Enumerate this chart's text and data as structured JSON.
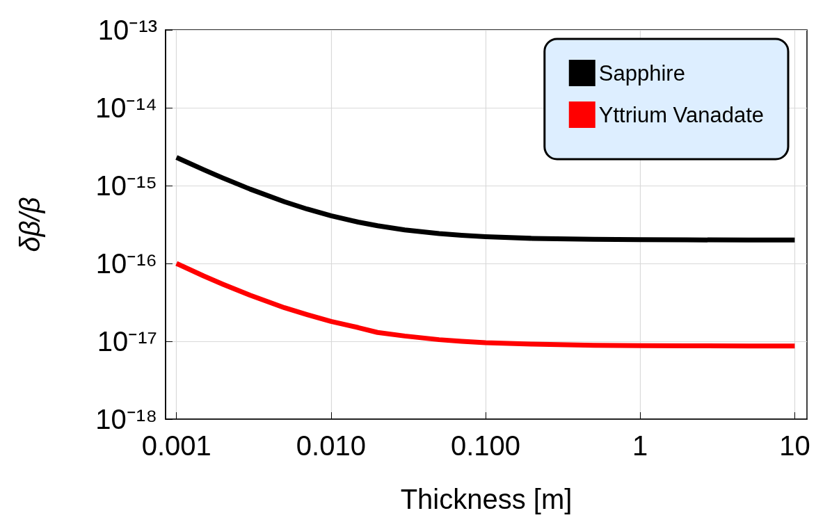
{
  "chart_data": {
    "type": "line",
    "xlabel": "Thickness [m]",
    "ylabel": "δβ/β",
    "log": "xy",
    "grid": true,
    "legend": "top right",
    "line_style": "solid",
    "marker": "none",
    "x": [
      0.001,
      0.0015,
      0.002,
      0.003,
      0.005,
      0.007,
      0.01,
      0.015,
      0.02,
      0.03,
      0.05,
      0.07,
      0.1,
      0.2,
      0.5,
      1,
      2,
      5,
      10
    ],
    "series": [
      {
        "name": "Sapphire",
        "color": "#000000",
        "values": [
          2.3e-15,
          1.6e-15,
          1.25e-15,
          9e-16,
          6.2e-16,
          5e-16,
          4.1e-16,
          3.4e-16,
          3.05e-16,
          2.7e-16,
          2.42e-16,
          2.3e-16,
          2.21e-16,
          2.1e-16,
          2.04e-16,
          2.02e-16,
          2.01e-16,
          2e-16,
          2e-16
        ]
      },
      {
        "name": "Yttrium Vanadate",
        "color": "#ff0000",
        "values": [
          1e-16,
          6.9e-17,
          5.4e-17,
          3.9e-17,
          2.7e-17,
          2.2e-17,
          1.8e-17,
          1.5e-17,
          1.3e-17,
          1.17e-17,
          1.05e-17,
          1e-17,
          9.6e-18,
          9.2e-18,
          8.9e-18,
          8.8e-18,
          8.75e-18,
          8.7e-18,
          8.7e-18
        ]
      }
    ],
    "xlim": [
      0.00085,
      12
    ],
    "xticks": [
      {
        "value": 0.001,
        "label": "0.001"
      },
      {
        "value": 0.01,
        "label": "0.010"
      },
      {
        "value": 0.1,
        "label": "0.100"
      },
      {
        "value": 1,
        "label": "1"
      },
      {
        "value": 10,
        "label": "10"
      }
    ],
    "ylim": [
      1e-18,
      1e-13
    ],
    "yticks": [
      {
        "value": 1e-18,
        "label": "10⁻¹⁸"
      },
      {
        "value": 1e-17,
        "label": "10⁻¹⁷"
      },
      {
        "value": 1e-16,
        "label": "10⁻¹⁶"
      },
      {
        "value": 1e-15,
        "label": "10⁻¹⁵"
      },
      {
        "value": 1e-14,
        "label": "10⁻¹⁴"
      },
      {
        "value": 1e-13,
        "label": "10⁻¹³"
      }
    ]
  }
}
